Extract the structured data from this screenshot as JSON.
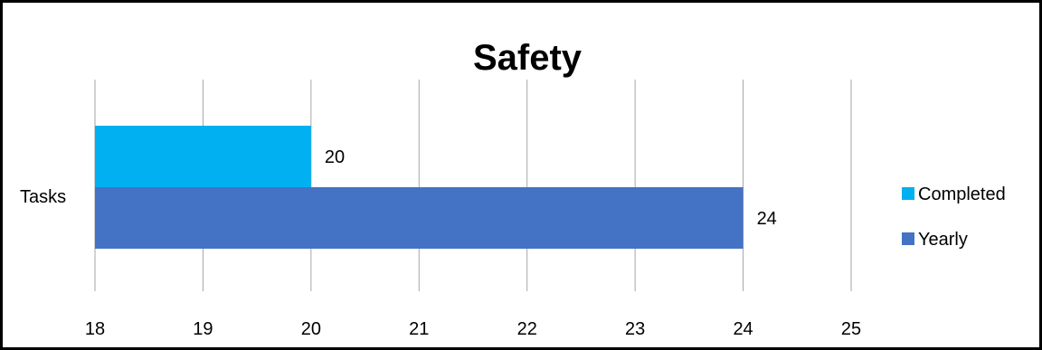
{
  "chart_data": {
    "type": "bar",
    "orientation": "horizontal",
    "title": "Safety",
    "categories": [
      "Tasks"
    ],
    "series": [
      {
        "name": "Completed",
        "values": [
          20
        ],
        "color": "#00B0F0"
      },
      {
        "name": "Yearly",
        "values": [
          24
        ],
        "color": "#4472C4"
      }
    ],
    "xlim": [
      18,
      25
    ],
    "xticks": [
      18,
      19,
      20,
      21,
      22,
      23,
      24,
      25
    ],
    "grid": "vertical",
    "legend_position": "right",
    "data_labels": true
  }
}
